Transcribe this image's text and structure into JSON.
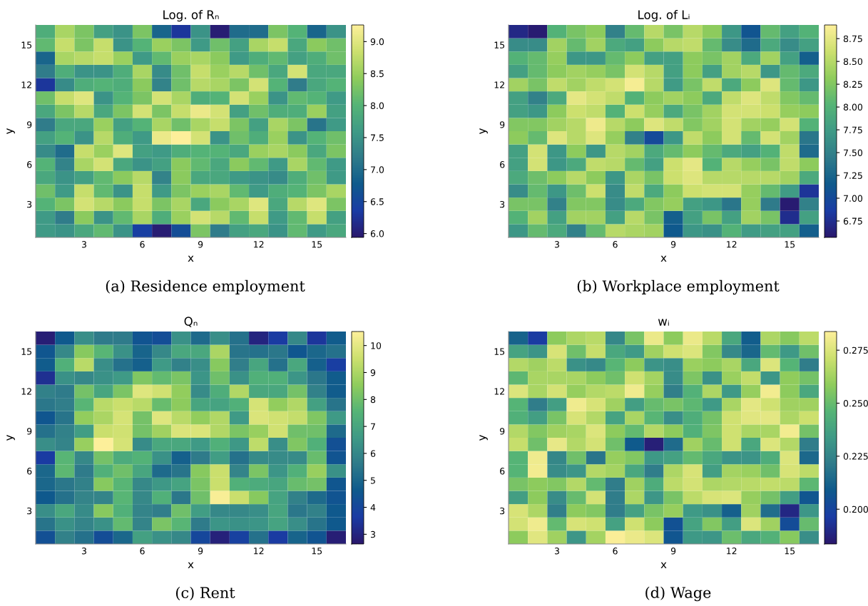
{
  "chart_data": [
    {
      "type": "heatmap",
      "title": "Log. of Rₙ",
      "xlabel": "x",
      "ylabel": "y",
      "annotations": [
        "(a) Residence employment"
      ],
      "colors": [
        "#2a186c",
        "#1a3ca4",
        "#0f5a8c",
        "#2f7b8a",
        "#3f9a86",
        "#55b476",
        "#8fcc5c",
        "#cce06e",
        "#fdef9a"
      ],
      "categories": [
        null,
        null,
        "3",
        null,
        null,
        "6",
        null,
        null,
        "9",
        null,
        null,
        "12",
        null,
        null,
        "15",
        null
      ],
      "y_categories": [
        null,
        "15",
        null,
        null,
        "12",
        null,
        null,
        "9",
        null,
        null,
        "6",
        null,
        null,
        "3",
        null,
        null
      ],
      "clim": [
        5.94,
        9.26
      ],
      "cticks": [
        {
          "value": 6,
          "label": "6.0"
        },
        6.5,
        {
          "value": 7,
          "label": "7.0"
        },
        7.5,
        {
          "value": 8,
          "label": "8.0"
        },
        8.5,
        {
          "value": 9,
          "label": "9.0"
        }
      ],
      "cells": [
        [
          7.9,
          8.6,
          8.3,
          7.7,
          7.5,
          8.3,
          6.9,
          6.3,
          7.5,
          6.0,
          7.0,
          7.0,
          8.3,
          8.0,
          6.9,
          7.5
        ],
        [
          8.1,
          8.8,
          8.3,
          8.8,
          7.5,
          8.0,
          8.5,
          8.3,
          7.6,
          8.2,
          7.7,
          8.6,
          8.8,
          7.8,
          8.4,
          8.2
        ],
        [
          6.9,
          8.6,
          8.7,
          8.8,
          8.5,
          7.6,
          8.1,
          8.5,
          8.6,
          8.4,
          7.6,
          7.9,
          8.1,
          7.7,
          7.9,
          8.2
        ],
        [
          7.2,
          7.9,
          7.5,
          7.5,
          7.9,
          8.6,
          7.4,
          8.2,
          8.8,
          8.5,
          8.7,
          8.2,
          7.8,
          8.9,
          7.8,
          7.8
        ],
        [
          6.3,
          7.4,
          7.9,
          8.0,
          7.9,
          8.4,
          7.3,
          8.2,
          8.7,
          8.6,
          8.3,
          8.9,
          8.0,
          7.2,
          7.8,
          8.0
        ],
        [
          8.2,
          8.8,
          9.0,
          7.5,
          8.0,
          8.3,
          8.9,
          8.6,
          7.9,
          8.0,
          8.9,
          8.5,
          7.5,
          8.1,
          8.0,
          7.6
        ],
        [
          7.8,
          8.3,
          8.7,
          7.8,
          8.3,
          8.9,
          8.3,
          8.8,
          9.1,
          8.9,
          7.7,
          8.2,
          7.9,
          7.9,
          8.5,
          7.7
        ],
        [
          7.2,
          7.8,
          7.8,
          8.5,
          7.7,
          8.0,
          8.6,
          8.2,
          8.6,
          8.8,
          8.3,
          7.7,
          8.6,
          8.3,
          7.1,
          7.6
        ],
        [
          7.7,
          8.0,
          7.5,
          8.7,
          7.9,
          7.6,
          9.1,
          9.25,
          8.9,
          7.5,
          8.2,
          7.9,
          8.5,
          7.5,
          8.0,
          8.2
        ],
        [
          7.4,
          7.0,
          8.8,
          8.5,
          9.0,
          7.7,
          7.6,
          7.9,
          8.0,
          8.0,
          7.8,
          8.5,
          8.6,
          8.4,
          7.8,
          8.3
        ],
        [
          8.0,
          7.3,
          8.6,
          8.9,
          7.8,
          7.5,
          7.7,
          8.4,
          8.1,
          7.8,
          8.4,
          8.1,
          7.6,
          8.6,
          8.1,
          7.6
        ],
        [
          7.8,
          7.5,
          7.7,
          8.1,
          8.4,
          8.7,
          7.3,
          8.4,
          7.8,
          7.8,
          7.6,
          7.5,
          7.4,
          7.9,
          8.2,
          7.6
        ],
        [
          8.2,
          7.6,
          8.8,
          8.1,
          7.5,
          8.8,
          7.6,
          8.3,
          8.5,
          8.6,
          8.1,
          7.6,
          7.9,
          8.0,
          8.3,
          8.6
        ],
        [
          8.0,
          8.3,
          8.9,
          8.7,
          8.4,
          8.8,
          8.3,
          8.6,
          7.8,
          8.4,
          8.6,
          9.0,
          7.8,
          8.7,
          9.0,
          8.3
        ],
        [
          7.6,
          7.2,
          8.4,
          7.5,
          8.1,
          8.6,
          7.9,
          8.5,
          8.9,
          8.7,
          8.1,
          8.8,
          7.6,
          8.1,
          8.8,
          7.7
        ],
        [
          7.6,
          7.5,
          7.8,
          8.1,
          7.5,
          6.4,
          6.0,
          6.6,
          8.3,
          7.2,
          7.7,
          7.8,
          7.5,
          8.1,
          7.6,
          7.8
        ]
      ]
    },
    {
      "type": "heatmap",
      "title": "Log. of Lᵢ",
      "xlabel": "x",
      "ylabel": "y",
      "annotations": [
        "(b) Workplace employment"
      ],
      "colors": [
        "#2a186c",
        "#1a3ca4",
        "#0f5a8c",
        "#2f7b8a",
        "#3f9a86",
        "#55b476",
        "#8fcc5c",
        "#cce06e",
        "#fdef9a"
      ],
      "categories": [
        null,
        null,
        "3",
        null,
        null,
        "6",
        null,
        null,
        "9",
        null,
        null,
        "12",
        null,
        null,
        "15",
        null
      ],
      "y_categories": [
        null,
        "15",
        null,
        null,
        "12",
        null,
        null,
        "9",
        null,
        null,
        "6",
        null,
        null,
        "3",
        null,
        null
      ],
      "clim": [
        6.57,
        8.9
      ],
      "cticks": [
        6.75,
        {
          "value": 7,
          "label": "7.00"
        },
        7.25,
        {
          "value": 7.5,
          "label": "7.50"
        },
        7.75,
        {
          "value": 8,
          "label": "8.00"
        },
        8.25,
        {
          "value": 8.5,
          "label": "8.50"
        },
        8.75
      ],
      "cells": [
        [
          6.7,
          6.6,
          8.0,
          8.2,
          8.3,
          7.5,
          8.1,
          8.5,
          8.2,
          8.5,
          8.3,
          7.7,
          7.1,
          8.1,
          7.8,
          8.0
        ],
        [
          7.6,
          7.6,
          8.4,
          8.1,
          8.4,
          7.9,
          7.8,
          8.3,
          8.5,
          8.55,
          8.1,
          7.6,
          7.3,
          7.9,
          7.6,
          7.8
        ],
        [
          8.0,
          8.1,
          8.35,
          7.7,
          7.7,
          8.1,
          8.3,
          7.8,
          7.8,
          8.3,
          8.2,
          8.4,
          7.9,
          8.4,
          7.8,
          7.2
        ],
        [
          7.8,
          8.1,
          8.3,
          8.4,
          8.35,
          8.2,
          8.65,
          8.5,
          7.8,
          8.3,
          7.8,
          8.4,
          8.5,
          7.7,
          8.1,
          7.9
        ],
        [
          8.4,
          8.2,
          8.55,
          8.4,
          8.55,
          8.65,
          8.85,
          8.5,
          7.75,
          8.2,
          8.55,
          7.9,
          8.3,
          8.7,
          8.1,
          7.7
        ],
        [
          7.8,
          7.5,
          7.9,
          8.75,
          8.65,
          8.55,
          8.0,
          8.3,
          8.4,
          8.3,
          7.9,
          8.55,
          8.7,
          8.55,
          8.25,
          8.1
        ],
        [
          7.8,
          7.7,
          8.3,
          8.6,
          8.55,
          8.0,
          8.6,
          8.35,
          7.9,
          8.2,
          8.4,
          8.65,
          8.65,
          8.6,
          8.35,
          8.3
        ],
        [
          8.25,
          8.25,
          8.4,
          8.5,
          8.8,
          8.5,
          8.3,
          8.7,
          8.55,
          8.25,
          8.4,
          8.65,
          8.4,
          8.35,
          8.65,
          8.0
        ],
        [
          8.3,
          8.1,
          8.7,
          8.5,
          8.7,
          8.35,
          7.5,
          7.0,
          7.7,
          8.55,
          8.3,
          8.65,
          8.1,
          8.65,
          8.4,
          7.4
        ],
        [
          7.8,
          8.65,
          7.7,
          8.3,
          7.7,
          8.5,
          8.4,
          7.9,
          8.1,
          8.3,
          8.1,
          7.9,
          7.8,
          8.0,
          8.55,
          7.3
        ],
        [
          7.8,
          8.65,
          7.7,
          7.9,
          8.55,
          8.5,
          8.1,
          7.8,
          8.6,
          8.75,
          8.0,
          8.5,
          8.35,
          8.2,
          8.55,
          8.3
        ],
        [
          7.9,
          8.15,
          8.3,
          8.5,
          8.3,
          7.7,
          8.45,
          8.2,
          8.6,
          8.7,
          8.5,
          8.5,
          8.5,
          8.5,
          8.4,
          7.9
        ],
        [
          7.6,
          8.1,
          7.7,
          8.15,
          8.6,
          7.6,
          8.55,
          7.9,
          8.3,
          8.6,
          8.65,
          8.65,
          8.35,
          8.1,
          7.75,
          6.8
        ],
        [
          8.2,
          8.2,
          7.5,
          8.25,
          8.25,
          7.6,
          7.9,
          8.25,
          8.35,
          7.8,
          7.7,
          7.4,
          8.35,
          7.45,
          6.6,
          7.5
        ],
        [
          8.0,
          8.4,
          7.8,
          8.4,
          8.4,
          7.8,
          8.5,
          8.2,
          7.2,
          7.8,
          8.2,
          7.8,
          8.4,
          8.2,
          6.75,
          7.8
        ],
        [
          7.7,
          8.1,
          7.9,
          7.5,
          8.1,
          8.5,
          8.45,
          8.4,
          7.15,
          7.7,
          7.65,
          8.0,
          7.75,
          7.8,
          7.8,
          7.2
        ]
      ]
    },
    {
      "type": "heatmap",
      "title": "Qₙ",
      "xlabel": "x",
      "ylabel": "y",
      "annotations": [
        "(c) Rent"
      ],
      "colors": [
        "#2a186c",
        "#1a3ca4",
        "#0f5a8c",
        "#2f7b8a",
        "#3f9a86",
        "#55b476",
        "#8fcc5c",
        "#cce06e",
        "#fdef9a"
      ],
      "categories": [
        null,
        null,
        "3",
        null,
        null,
        "6",
        null,
        null,
        "9",
        null,
        null,
        "12",
        null,
        null,
        "15",
        null
      ],
      "y_categories": [
        null,
        "15",
        null,
        null,
        "12",
        null,
        null,
        "9",
        null,
        null,
        "6",
        null,
        null,
        "3",
        null,
        null
      ],
      "clim": [
        2.64,
        10.52
      ],
      "cticks": [
        3,
        4,
        5,
        6,
        7,
        8,
        9,
        10
      ],
      "cells": [
        [
          2.8,
          4.6,
          6.2,
          5.6,
          5.6,
          4.4,
          4.2,
          6.3,
          5.1,
          6.2,
          5.3,
          3.0,
          3.6,
          6.0,
          3.5,
          4.7
        ],
        [
          4.5,
          6.0,
          8.4,
          7.6,
          6.3,
          4.9,
          6.0,
          7.1,
          7.1,
          9.0,
          5.4,
          5.3,
          5.5,
          4.5,
          5.0,
          5.3
        ],
        [
          4.7,
          7.4,
          9.2,
          6.2,
          5.3,
          4.8,
          6.6,
          5.8,
          6.2,
          8.4,
          5.7,
          7.0,
          5.3,
          7.1,
          4.8,
          3.7
        ],
        [
          3.3,
          6.3,
          6.0,
          6.3,
          6.6,
          8.3,
          7.8,
          8.2,
          6.4,
          8.0,
          6.3,
          7.4,
          7.4,
          6.4,
          5.5,
          4.7
        ],
        [
          5.8,
          5.6,
          8.1,
          7.0,
          8.2,
          9.9,
          9.6,
          8.6,
          6.1,
          7.3,
          9.1,
          7.1,
          7.1,
          8.1,
          5.8,
          4.7
        ],
        [
          5.5,
          5.7,
          7.6,
          9.2,
          9.5,
          9.2,
          7.9,
          8.5,
          7.0,
          6.9,
          7.4,
          9.7,
          8.6,
          9.1,
          6.8,
          5.4
        ],
        [
          4.5,
          5.4,
          8.6,
          9.0,
          9.7,
          8.1,
          9.9,
          9.2,
          8.6,
          9.1,
          6.6,
          9.8,
          9.6,
          9.4,
          8.3,
          6.6
        ],
        [
          5.3,
          5.8,
          6.7,
          9.5,
          9.6,
          8.1,
          8.8,
          9.8,
          9.8,
          9.1,
          8.2,
          8.7,
          9.6,
          8.0,
          8.0,
          5.1
        ],
        [
          6.2,
          5.9,
          8.7,
          10.5,
          9.7,
          6.1,
          7.1,
          7.1,
          6.6,
          7.4,
          6.5,
          9.3,
          6.2,
          8.3,
          7.4,
          4.3
        ],
        [
          3.6,
          7.6,
          6.0,
          8.1,
          7.2,
          7.5,
          6.3,
          4.8,
          5.6,
          6.7,
          5.3,
          6.1,
          6.1,
          6.1,
          7.9,
          4.4
        ],
        [
          5.0,
          7.7,
          5.6,
          7.4,
          8.0,
          7.0,
          5.1,
          5.4,
          8.4,
          9.5,
          5.9,
          8.2,
          6.4,
          7.4,
          8.7,
          6.3
        ],
        [
          5.0,
          5.5,
          5.8,
          8.4,
          7.6,
          6.0,
          6.5,
          6.9,
          8.2,
          9.5,
          7.4,
          7.2,
          7.0,
          7.9,
          8.1,
          4.5
        ],
        [
          4.6,
          5.3,
          5.9,
          5.9,
          7.6,
          6.0,
          7.4,
          5.5,
          8.0,
          10.4,
          9.5,
          8.4,
          6.9,
          5.8,
          5.1,
          4.4
        ],
        [
          6.2,
          7.1,
          6.1,
          8.4,
          7.4,
          5.9,
          5.7,
          8.0,
          6.7,
          6.0,
          6.0,
          6.2,
          7.0,
          5.5,
          5.8,
          4.6
        ],
        [
          5.4,
          6.3,
          5.9,
          6.3,
          7.8,
          5.9,
          8.2,
          7.6,
          5.6,
          6.4,
          6.3,
          6.4,
          6.9,
          6.2,
          5.4,
          4.6
        ],
        [
          4.3,
          5.8,
          5.3,
          4.2,
          5.0,
          6.8,
          6.3,
          6.0,
          4.0,
          2.9,
          3.8,
          5.3,
          3.6,
          4.9,
          4.4,
          2.8
        ]
      ]
    },
    {
      "type": "heatmap",
      "title": "wᵢ",
      "xlabel": "x",
      "ylabel": "y",
      "annotations": [
        "(d) Wage"
      ],
      "colors": [
        "#2a186c",
        "#1a3ca4",
        "#0f5a8c",
        "#2f7b8a",
        "#3f9a86",
        "#55b476",
        "#8fcc5c",
        "#cce06e",
        "#fdef9a"
      ],
      "categories": [
        null,
        null,
        "3",
        null,
        null,
        "6",
        null,
        null,
        "9",
        null,
        null,
        "12",
        null,
        null,
        "15",
        null
      ],
      "y_categories": [
        null,
        "15",
        null,
        null,
        "12",
        null,
        null,
        "9",
        null,
        null,
        "6",
        null,
        null,
        "3",
        null,
        null
      ],
      "clim": [
        0.1836,
        0.2838
      ],
      "cticks": [
        {
          "value": 0.2,
          "label": "0.200"
        },
        0.225,
        {
          "value": 0.25,
          "label": "0.250"
        },
        0.275
      ],
      "cells": [
        [
          0.212,
          0.196,
          0.258,
          0.265,
          0.267,
          0.226,
          0.254,
          0.279,
          0.258,
          0.279,
          0.267,
          0.24,
          0.21,
          0.265,
          0.257,
          0.268
        ],
        [
          0.238,
          0.231,
          0.274,
          0.252,
          0.27,
          0.24,
          0.234,
          0.262,
          0.272,
          0.275,
          0.256,
          0.227,
          0.213,
          0.249,
          0.233,
          0.252
        ],
        [
          0.266,
          0.262,
          0.268,
          0.23,
          0.227,
          0.247,
          0.258,
          0.231,
          0.229,
          0.261,
          0.258,
          0.264,
          0.24,
          0.275,
          0.246,
          0.222
        ],
        [
          0.248,
          0.264,
          0.264,
          0.264,
          0.258,
          0.252,
          0.272,
          0.263,
          0.228,
          0.255,
          0.23,
          0.261,
          0.269,
          0.232,
          0.259,
          0.253
        ],
        [
          0.275,
          0.264,
          0.273,
          0.26,
          0.266,
          0.268,
          0.28,
          0.26,
          0.223,
          0.245,
          0.265,
          0.233,
          0.26,
          0.281,
          0.258,
          0.24
        ],
        [
          0.246,
          0.222,
          0.236,
          0.28,
          0.274,
          0.262,
          0.236,
          0.25,
          0.254,
          0.248,
          0.234,
          0.264,
          0.277,
          0.272,
          0.262,
          0.262
        ],
        [
          0.244,
          0.236,
          0.254,
          0.274,
          0.266,
          0.238,
          0.264,
          0.247,
          0.229,
          0.243,
          0.253,
          0.272,
          0.276,
          0.277,
          0.265,
          0.271
        ],
        [
          0.266,
          0.256,
          0.262,
          0.264,
          0.275,
          0.258,
          0.249,
          0.266,
          0.258,
          0.244,
          0.255,
          0.272,
          0.264,
          0.264,
          0.281,
          0.253
        ],
        [
          0.27,
          0.252,
          0.278,
          0.266,
          0.273,
          0.252,
          0.209,
          0.186,
          0.215,
          0.262,
          0.25,
          0.272,
          0.24,
          0.275,
          0.266,
          0.222
        ],
        [
          0.246,
          0.28,
          0.226,
          0.252,
          0.219,
          0.26,
          0.256,
          0.233,
          0.237,
          0.249,
          0.24,
          0.231,
          0.231,
          0.243,
          0.275,
          0.214
        ],
        [
          0.246,
          0.281,
          0.228,
          0.232,
          0.266,
          0.263,
          0.24,
          0.222,
          0.265,
          0.274,
          0.236,
          0.263,
          0.261,
          0.252,
          0.274,
          0.268
        ],
        [
          0.254,
          0.258,
          0.256,
          0.266,
          0.249,
          0.222,
          0.262,
          0.242,
          0.268,
          0.273,
          0.265,
          0.266,
          0.267,
          0.269,
          0.268,
          0.248
        ],
        [
          0.236,
          0.258,
          0.228,
          0.25,
          0.273,
          0.222,
          0.265,
          0.232,
          0.254,
          0.268,
          0.274,
          0.275,
          0.26,
          0.253,
          0.236,
          0.207
        ],
        [
          0.274,
          0.265,
          0.223,
          0.258,
          0.256,
          0.222,
          0.237,
          0.254,
          0.26,
          0.234,
          0.23,
          0.211,
          0.262,
          0.216,
          0.189,
          0.232
        ],
        [
          0.273,
          0.28,
          0.249,
          0.274,
          0.272,
          0.237,
          0.272,
          0.258,
          0.205,
          0.238,
          0.256,
          0.236,
          0.275,
          0.262,
          0.203,
          0.25
        ],
        [
          0.258,
          0.276,
          0.262,
          0.232,
          0.263,
          0.283,
          0.279,
          0.275,
          0.207,
          0.233,
          0.232,
          0.251,
          0.24,
          0.245,
          0.257,
          0.229
        ]
      ]
    }
  ]
}
